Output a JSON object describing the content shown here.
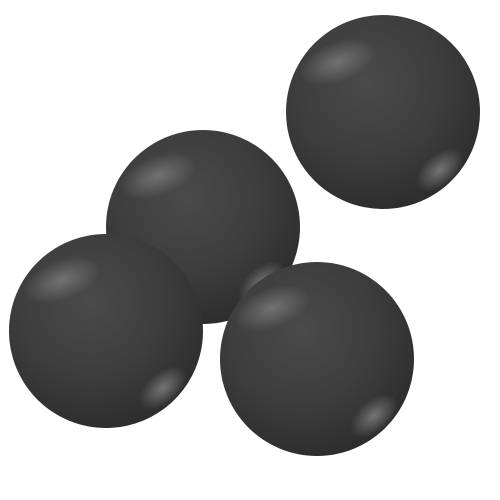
{
  "scene": {
    "background_color": "#ffffff",
    "object": "sphere",
    "sphere_count": 4,
    "colors": {
      "base": "#3d3d3d",
      "dark_edge": "#2a2a2a",
      "highlight": "#7a7a7a",
      "rim_light": "#8a8a8a"
    },
    "spheres": [
      {
        "id": "top-right"
      },
      {
        "id": "center"
      },
      {
        "id": "bottom-left"
      },
      {
        "id": "bottom-right"
      }
    ]
  }
}
